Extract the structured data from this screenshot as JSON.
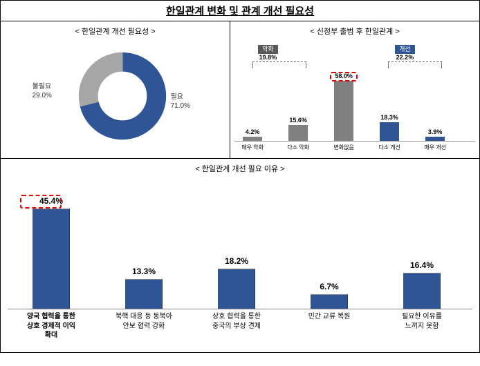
{
  "title": "한일관계 변화 및 관계 개선 필요성",
  "donut": {
    "subtitle": "< 한일관계 개선 필요성 >",
    "seg1": {
      "label": "필요",
      "pct": "71.0%",
      "value": 71.0,
      "color": "#2f5597"
    },
    "seg2": {
      "label": "불필요",
      "pct": "29.0%",
      "value": 29.0,
      "color": "#a6a6a6"
    }
  },
  "smallbar": {
    "subtitle": "< 신정부 출범 후 한일관계 >",
    "summary_worsen": {
      "label": "악화",
      "pct": "19.8%",
      "bg": "#595959"
    },
    "summary_improve": {
      "label": "개선",
      "pct": "22.2%",
      "bg": "#2f5597"
    },
    "bars": [
      {
        "cat": "매우 악화",
        "val": "4.2%",
        "h": 4.2,
        "color": "#808080"
      },
      {
        "cat": "다소 악화",
        "val": "15.6%",
        "h": 15.6,
        "color": "#808080"
      },
      {
        "cat": "변화없음",
        "val": "58.0%",
        "h": 58.0,
        "color": "#808080",
        "highlight": true
      },
      {
        "cat": "다소 개선",
        "val": "18.3%",
        "h": 18.3,
        "color": "#2f5597"
      },
      {
        "cat": "매우 개선",
        "val": "3.9%",
        "h": 3.9,
        "color": "#2f5597"
      }
    ]
  },
  "bigbar": {
    "subtitle": "< 한일관계 개선 필요 이유 >",
    "bars": [
      {
        "cat": "양국 협력을 통한\n상호 경제적 이익\n확대",
        "val": "45.4%",
        "h": 45.4,
        "highlight": true,
        "bold": true
      },
      {
        "cat": "북핵 대응 등 동북아\n안보 협력 강화",
        "val": "13.3%",
        "h": 13.3
      },
      {
        "cat": "상호 협력을 통한\n중국의 부상 견제",
        "val": "18.2%",
        "h": 18.2
      },
      {
        "cat": "민간 교류 복원",
        "val": "6.7%",
        "h": 6.7
      },
      {
        "cat": "필요한 이유를\n느끼지 못함",
        "val": "16.4%",
        "h": 16.4
      }
    ],
    "color": "#2f5597"
  }
}
